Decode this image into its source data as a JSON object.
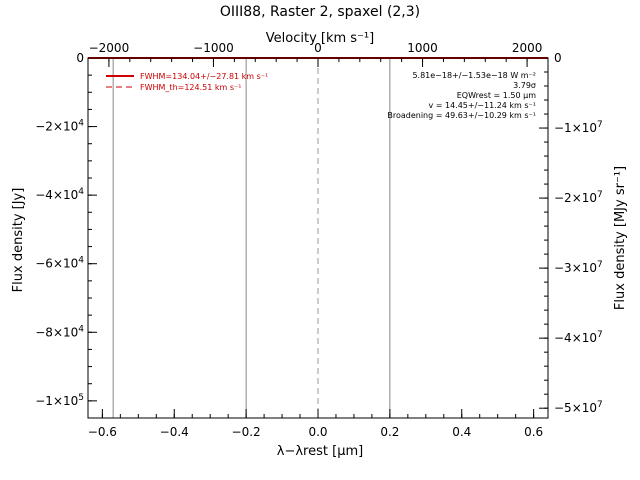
{
  "chart_data": {
    "type": "line",
    "title": "OIII88, Raster 2, spaxel (2,3)",
    "xlabel": "λ−λrest [μm]",
    "ylabel": "Flux density [Jy]",
    "x2label": "Velocity [km s⁻¹]",
    "y2label": "Flux density [MJy sr⁻¹]",
    "xlim": [
      -0.64,
      0.64
    ],
    "ylim": [
      -105000,
      0
    ],
    "x2lim": [
      -2200,
      2200
    ],
    "y2lim": [
      -51400000,
      0
    ],
    "x_ticks": [
      {
        "v": -0.6,
        "label": "−0.6"
      },
      {
        "v": -0.4,
        "label": "−0.4"
      },
      {
        "v": -0.2,
        "label": "−0.2"
      },
      {
        "v": 0.0,
        "label": "0.0"
      },
      {
        "v": 0.2,
        "label": "0.2"
      },
      {
        "v": 0.4,
        "label": "0.4"
      },
      {
        "v": 0.6,
        "label": "0.6"
      }
    ],
    "x_minor_step": 0.05,
    "x2_ticks": [
      {
        "v": -2000,
        "label": "−2000"
      },
      {
        "v": -1000,
        "label": "−1000"
      },
      {
        "v": 0,
        "label": "0"
      },
      {
        "v": 1000,
        "label": "1000"
      },
      {
        "v": 2000,
        "label": "2000"
      }
    ],
    "x2_minor_step": 200,
    "y_ticks": [
      {
        "v": 0,
        "base": "0",
        "exp": ""
      },
      {
        "v": -20000,
        "base": "−2×10",
        "exp": "4"
      },
      {
        "v": -40000,
        "base": "−4×10",
        "exp": "4"
      },
      {
        "v": -60000,
        "base": "−6×10",
        "exp": "4"
      },
      {
        "v": -80000,
        "base": "−8×10",
        "exp": "4"
      },
      {
        "v": -100000,
        "base": "−1×10",
        "exp": "5"
      }
    ],
    "y_minor_step": 5000,
    "y2_ticks": [
      {
        "v": 0,
        "base": "0",
        "exp": ""
      },
      {
        "v": -10000000,
        "base": "−1×10",
        "exp": "7"
      },
      {
        "v": -20000000,
        "base": "−2×10",
        "exp": "7"
      },
      {
        "v": -30000000,
        "base": "−3×10",
        "exp": "7"
      },
      {
        "v": -40000000,
        "base": "−4×10",
        "exp": "7"
      },
      {
        "v": -50000000,
        "base": "−5×10",
        "exp": "7"
      }
    ],
    "y2_minor_step": 2000000,
    "vlines": [
      -0.57,
      -0.2,
      0.2
    ],
    "zero_line_x": 0.0,
    "series": [
      {
        "name": "FWHM=134.04+/−27.81 km s⁻¹",
        "style": "solid",
        "color": "#cc0000",
        "x": [
          -0.64,
          0.64
        ],
        "y": [
          0,
          0
        ]
      }
    ],
    "legend": [
      {
        "label": "FWHM=134.04+/−27.81 km s⁻¹",
        "style": "solid",
        "color": "#cc0000"
      },
      {
        "label": "FWHM_th=124.51 km s⁻¹",
        "style": "dashed",
        "color": "#cc0000"
      }
    ],
    "legend_position": "top-left",
    "annotations": [
      "5.81e−18+/−1.53e−18 W m⁻²",
      "3.79σ",
      "EQWrest = 1.50 μm",
      "v = 14.45+/−11.24 km s⁻¹",
      "Broadening = 49.63+/−10.29 km s⁻¹"
    ],
    "annotation_position": "top-right",
    "grid": false
  }
}
